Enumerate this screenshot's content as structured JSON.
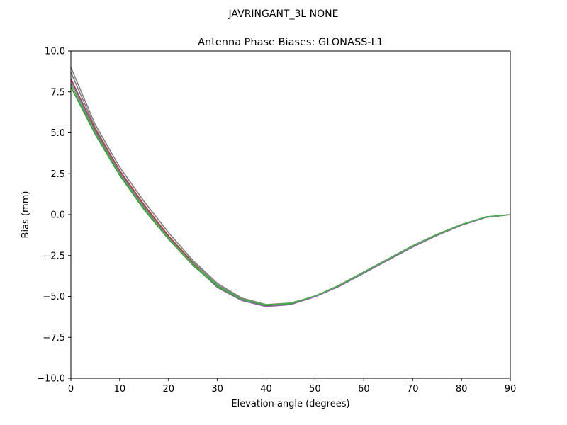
{
  "figure_title": "JAVRINGANT_3L   NONE",
  "chart_data": {
    "type": "line",
    "title": "Antenna Phase Biases: GLONASS-L1",
    "xlabel": "Elevation angle (degrees)",
    "ylabel": "Bias (mm)",
    "xlim": [
      0,
      90
    ],
    "ylim": [
      -10,
      10
    ],
    "xticks": [
      0,
      10,
      20,
      30,
      40,
      50,
      60,
      70,
      80,
      90
    ],
    "xtick_labels": [
      "0",
      "10",
      "20",
      "30",
      "40",
      "50",
      "60",
      "70",
      "80",
      "90"
    ],
    "yticks": [
      10,
      7.5,
      5,
      2.5,
      0,
      -2.5,
      -5,
      -7.5,
      -10
    ],
    "ytick_labels": [
      "10.0",
      "7.5",
      "5.0",
      "2.5",
      "0.0",
      "−2.5",
      "−5.0",
      "−7.5",
      "−10.0"
    ],
    "grid": false,
    "x": [
      0,
      5,
      10,
      15,
      20,
      25,
      30,
      35,
      40,
      45,
      50,
      55,
      60,
      65,
      70,
      75,
      80,
      85,
      90
    ],
    "series": [
      {
        "color": "#808080",
        "values": [
          9.0,
          5.5,
          2.9,
          0.8,
          -1.1,
          -2.8,
          -4.2,
          -5.1,
          -5.5,
          -5.4,
          -5.0,
          -4.3,
          -3.5,
          -2.7,
          -1.9,
          -1.2,
          -0.6,
          -0.15,
          0.0
        ]
      },
      {
        "color": "#7f7f7f",
        "values": [
          8.7,
          5.3,
          2.7,
          0.6,
          -1.3,
          -2.9,
          -4.3,
          -5.15,
          -5.55,
          -5.45,
          -5.0,
          -4.35,
          -3.55,
          -2.75,
          -1.95,
          -1.22,
          -0.62,
          -0.15,
          0.0
        ]
      },
      {
        "color": "#c0392b",
        "values": [
          8.3,
          5.2,
          2.7,
          0.6,
          -1.3,
          -3.0,
          -4.4,
          -5.2,
          -5.6,
          -5.45,
          -5.0,
          -4.35,
          -3.55,
          -2.75,
          -1.95,
          -1.25,
          -0.63,
          -0.16,
          0.0
        ]
      },
      {
        "color": "#9b59b6",
        "values": [
          8.2,
          5.1,
          2.6,
          0.5,
          -1.4,
          -3.05,
          -4.45,
          -5.25,
          -5.62,
          -5.5,
          -5.02,
          -4.38,
          -3.58,
          -2.78,
          -1.98,
          -1.27,
          -0.65,
          -0.17,
          0.0
        ]
      },
      {
        "color": "#2ca02c",
        "values": [
          7.8,
          4.9,
          2.4,
          0.3,
          -1.5,
          -3.1,
          -4.4,
          -5.2,
          -5.55,
          -5.45,
          -4.98,
          -4.33,
          -3.53,
          -2.73,
          -1.93,
          -1.23,
          -0.61,
          -0.14,
          0.0
        ]
      },
      {
        "color": "#4caf50",
        "values": [
          8.0,
          5.0,
          2.5,
          0.4,
          -1.45,
          -3.05,
          -4.35,
          -5.18,
          -5.52,
          -5.42,
          -4.97,
          -4.32,
          -3.52,
          -2.72,
          -1.92,
          -1.22,
          -0.6,
          -0.14,
          0.0
        ]
      }
    ]
  }
}
